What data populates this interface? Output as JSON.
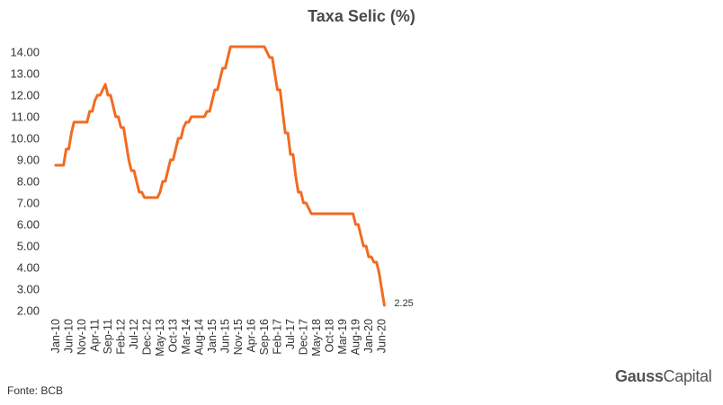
{
  "chart_data": {
    "type": "line",
    "title": "Taxa Selic (%)",
    "xlabel": "",
    "ylabel": "",
    "ylim": [
      2.0,
      14.0
    ],
    "yticks": [
      "2.00",
      "3.00",
      "4.00",
      "5.00",
      "6.00",
      "7.00",
      "8.00",
      "9.00",
      "10.00",
      "11.00",
      "12.00",
      "13.00",
      "14.00"
    ],
    "xticks": [
      "Jan-10",
      "Jun-10",
      "Nov-10",
      "Apr-11",
      "Sep-11",
      "Feb-12",
      "Jul-12",
      "Dec-12",
      "May-13",
      "Oct-13",
      "Mar-14",
      "Aug-14",
      "Jan-15",
      "Jun-15",
      "Nov-15",
      "Apr-16",
      "Sep-16",
      "Feb-17",
      "Jul-17",
      "Dec-17",
      "May-18",
      "Oct-18",
      "Mar-19",
      "Aug-19",
      "Jan-20",
      "Jun-20"
    ],
    "grid": false,
    "color": "#f26b21",
    "end_label": "2.25",
    "series": [
      {
        "points": [
          [
            "Jan-10",
            8.75
          ],
          [
            "Apr-10",
            8.75
          ],
          [
            "May-10",
            9.5
          ],
          [
            "Jun-10",
            9.5
          ],
          [
            "Jul-10",
            10.25
          ],
          [
            "Aug-10",
            10.75
          ],
          [
            "Dec-10",
            10.75
          ],
          [
            "Jan-11",
            10.75
          ],
          [
            "Feb-11",
            11.25
          ],
          [
            "Mar-11",
            11.25
          ],
          [
            "Apr-11",
            11.75
          ],
          [
            "May-11",
            12.0
          ],
          [
            "Jun-11",
            12.0
          ],
          [
            "Jul-11",
            12.25
          ],
          [
            "Aug-11",
            12.5
          ],
          [
            "Sep-11",
            12.0
          ],
          [
            "Oct-11",
            12.0
          ],
          [
            "Nov-11",
            11.5
          ],
          [
            "Dec-11",
            11.0
          ],
          [
            "Jan-12",
            11.0
          ],
          [
            "Feb-12",
            10.5
          ],
          [
            "Mar-12",
            10.5
          ],
          [
            "Apr-12",
            9.75
          ],
          [
            "May-12",
            9.0
          ],
          [
            "Jun-12",
            8.5
          ],
          [
            "Jul-12",
            8.5
          ],
          [
            "Aug-12",
            8.0
          ],
          [
            "Sep-12",
            7.5
          ],
          [
            "Oct-12",
            7.5
          ],
          [
            "Nov-12",
            7.25
          ],
          [
            "Apr-13",
            7.25
          ],
          [
            "May-13",
            7.5
          ],
          [
            "Jun-13",
            8.0
          ],
          [
            "Jul-13",
            8.0
          ],
          [
            "Aug-13",
            8.5
          ],
          [
            "Sep-13",
            9.0
          ],
          [
            "Oct-13",
            9.0
          ],
          [
            "Nov-13",
            9.5
          ],
          [
            "Dec-13",
            10.0
          ],
          [
            "Jan-14",
            10.0
          ],
          [
            "Feb-14",
            10.5
          ],
          [
            "Mar-14",
            10.75
          ],
          [
            "Apr-14",
            10.75
          ],
          [
            "May-14",
            11.0
          ],
          [
            "Oct-14",
            11.0
          ],
          [
            "Nov-14",
            11.25
          ],
          [
            "Dec-14",
            11.25
          ],
          [
            "Jan-15",
            11.75
          ],
          [
            "Feb-15",
            12.25
          ],
          [
            "Mar-15",
            12.25
          ],
          [
            "Apr-15",
            12.75
          ],
          [
            "May-15",
            13.25
          ],
          [
            "Jun-15",
            13.25
          ],
          [
            "Jul-15",
            13.75
          ],
          [
            "Aug-15",
            14.25
          ],
          [
            "Sep-16",
            14.25
          ],
          [
            "Oct-16",
            14.0
          ],
          [
            "Nov-16",
            13.75
          ],
          [
            "Dec-16",
            13.75
          ],
          [
            "Jan-17",
            13.0
          ],
          [
            "Feb-17",
            12.25
          ],
          [
            "Mar-17",
            12.25
          ],
          [
            "Apr-17",
            11.25
          ],
          [
            "May-17",
            10.25
          ],
          [
            "Jun-17",
            10.25
          ],
          [
            "Jul-17",
            9.25
          ],
          [
            "Aug-17",
            9.25
          ],
          [
            "Sep-17",
            8.25
          ],
          [
            "Oct-17",
            7.5
          ],
          [
            "Nov-17",
            7.5
          ],
          [
            "Dec-17",
            7.0
          ],
          [
            "Jan-18",
            7.0
          ],
          [
            "Feb-18",
            6.75
          ],
          [
            "Mar-18",
            6.5
          ],
          [
            "Jul-19",
            6.5
          ],
          [
            "Aug-19",
            6.0
          ],
          [
            "Sep-19",
            6.0
          ],
          [
            "Oct-19",
            5.5
          ],
          [
            "Nov-19",
            5.0
          ],
          [
            "Dec-19",
            5.0
          ],
          [
            "Jan-20",
            4.5
          ],
          [
            "Feb-20",
            4.5
          ],
          [
            "Mar-20",
            4.25
          ],
          [
            "Apr-20",
            4.25
          ],
          [
            "May-20",
            3.75
          ],
          [
            "Jun-20",
            3.0
          ],
          [
            "Jul-20",
            2.25
          ]
        ]
      }
    ]
  },
  "footer": {
    "source": "Fonte: BCB",
    "brand_bold": "Gauss",
    "brand_light": "Capital"
  }
}
